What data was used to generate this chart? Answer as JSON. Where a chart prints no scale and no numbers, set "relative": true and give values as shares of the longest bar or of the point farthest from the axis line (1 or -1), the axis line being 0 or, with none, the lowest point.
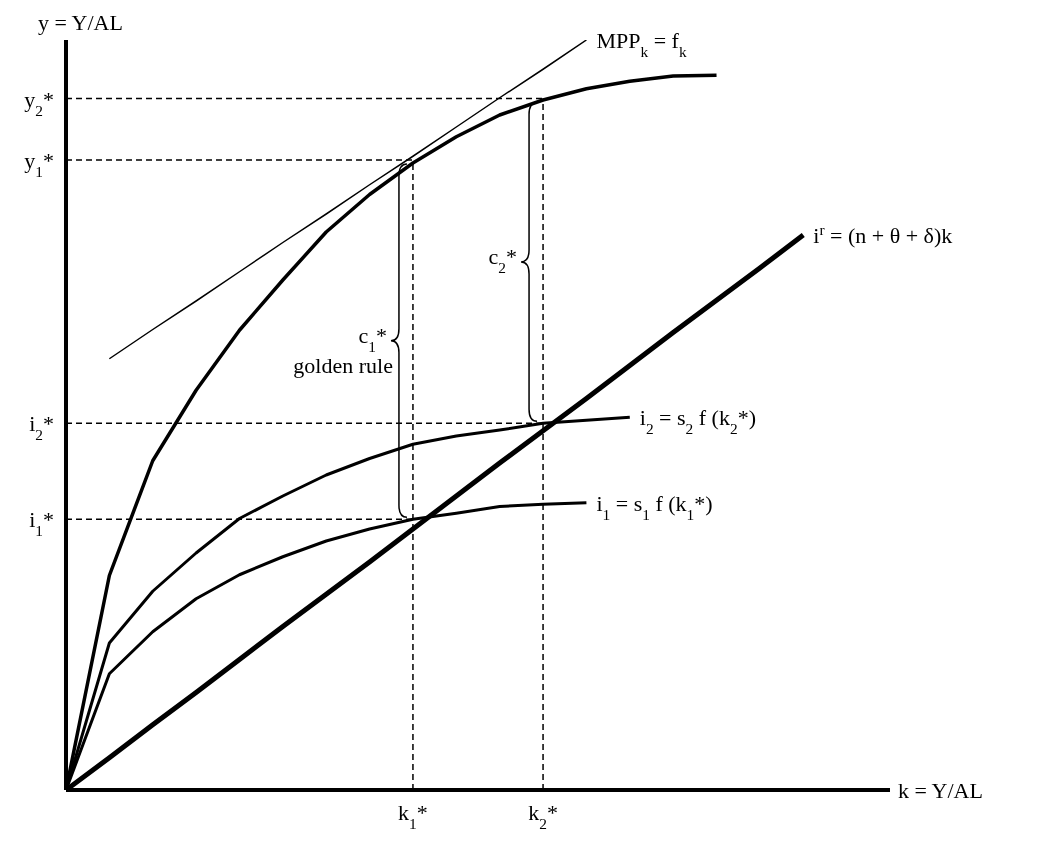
{
  "chart_data": {
    "type": "line",
    "relative": true,
    "xlabel": "k = Y/AL",
    "ylabel": "y = Y/AL",
    "categories": [
      null,
      null,
      null,
      null,
      null,
      null,
      null,
      null,
      "k$_{1}$*",
      null,
      null,
      "k$_{2}$*",
      null,
      null,
      null,
      null,
      null,
      null,
      null,
      null
    ],
    "series": [
      {
        "color": "#000000",
        "values": [
          0,
          0.286,
          0.439,
          0.533,
          0.613,
          0.68,
          0.744,
          0.794,
          0.836,
          0.871,
          0.9,
          0.92,
          0.935,
          0.945,
          0.952,
          0.953,
          null,
          null,
          null,
          null
        ]
      },
      {
        "name": "MPP$_{k}$ = f$_{k}$",
        "color": "#000000",
        "values": [
          null,
          0.575,
          0.614,
          0.652,
          0.691,
          0.73,
          0.768,
          0.807,
          0.845,
          0.884,
          0.923,
          0.961,
          1,
          null,
          null,
          null,
          null,
          null,
          null,
          null
        ]
      },
      {
        "name": "i$^{r}$ = (n + θ + δ)k",
        "color": "#000000",
        "values": [
          0,
          0.043,
          0.087,
          0.13,
          0.174,
          0.218,
          0.261,
          0.304,
          0.348,
          0.392,
          0.436,
          0.479,
          0.522,
          0.566,
          0.61,
          0.653,
          0.696,
          0.74,
          null,
          null
        ]
      },
      {
        "name": "i$_{2}$ = s$_{2}$ f (k$_{2}$*)",
        "color": "#000000",
        "values": [
          0,
          0.196,
          0.265,
          0.316,
          0.362,
          0.392,
          0.42,
          0.442,
          0.461,
          0.472,
          0.48,
          0.489,
          0.493,
          0.497,
          null,
          null,
          null,
          null,
          null,
          null
        ]
      },
      {
        "name": "i$_{1}$ = s$_{1}$ f (k$_{1}$*)",
        "color": "#000000",
        "values": [
          0,
          0.155,
          0.211,
          0.255,
          0.287,
          0.311,
          0.332,
          0.348,
          0.361,
          0.369,
          0.378,
          0.381,
          0.383,
          null,
          null,
          null,
          null,
          null,
          null,
          null
        ]
      }
    ],
    "ref_lines": [
      {
        "axis": "y",
        "value": 0.922,
        "label": "y$_{2}$*",
        "line_style": "dashed"
      },
      {
        "axis": "y",
        "value": 0.84,
        "label": "y$_{1}$*",
        "line_style": "dashed"
      },
      {
        "axis": "y",
        "value": 0.489,
        "label": "i$_{2}$*",
        "line_style": "dashed"
      },
      {
        "axis": "y",
        "value": 0.361,
        "label": "i$_{1}$*",
        "line_style": "dashed"
      },
      {
        "axis": "x",
        "value": "k$_{1}$*",
        "line_style": "dashed"
      },
      {
        "axis": "x",
        "value": "k$_{2}$*",
        "line_style": "dashed"
      }
    ],
    "annotations": [
      "c$_{1}$*",
      "golden rule",
      "c$_{2}$*"
    ]
  }
}
